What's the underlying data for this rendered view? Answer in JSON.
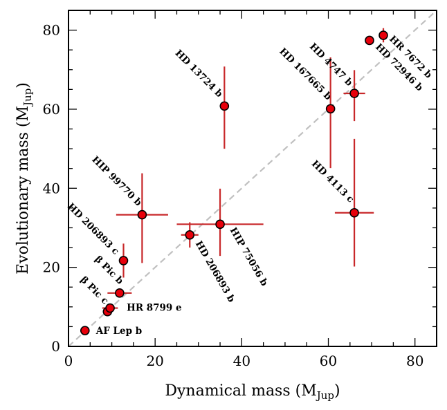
{
  "chart_data": {
    "type": "scatter",
    "title": "",
    "xlabel": "Dynamical mass (MJup)",
    "xlabel_main": "Dynamical mass (M",
    "xlabel_sub": "Jup",
    "xlabel_close": ")",
    "ylabel": "Evolutionary mass (MJup)",
    "ylabel_main": "Evolutionary mass (M",
    "ylabel_sub": "Jup",
    "ylabel_close": ")",
    "xlim": [
      0,
      85
    ],
    "ylim": [
      0,
      85
    ],
    "xticks": [
      0,
      20,
      40,
      60,
      80
    ],
    "yticks": [
      0,
      20,
      40,
      60,
      80
    ],
    "one_to_one_line": true,
    "marker_color": "#e8000b",
    "errorbar_color": "#c8282a",
    "line_color": "#c0c0c0",
    "points": [
      {
        "name": "AF Lep b",
        "x": 3.8,
        "xerr": [
          0,
          0
        ],
        "y": 4.0,
        "yerr": [
          0,
          0
        ]
      },
      {
        "name": "β Pic c",
        "x": 9.0,
        "xerr": [
          0,
          0
        ],
        "y": 8.8,
        "yerr": [
          0,
          0
        ]
      },
      {
        "name": "HR 8799 e",
        "x": 9.6,
        "xerr": [
          1.8,
          1.8
        ],
        "y": 9.7,
        "yerr": [
          0,
          0
        ]
      },
      {
        "name": "β Pic b",
        "x": 11.8,
        "xerr": [
          2.8,
          2.8
        ],
        "y": 13.5,
        "yerr": [
          0,
          0
        ]
      },
      {
        "name": "HD 206893 c",
        "x": 12.7,
        "xerr": [
          0,
          0
        ],
        "y": 21.7,
        "yerr": [
          4.3,
          4.3
        ]
      },
      {
        "name": "HIP 99770 b",
        "x": 17.0,
        "xerr": [
          6.0,
          6.0
        ],
        "y": 33.3,
        "yerr": [
          12.2,
          10.5
        ]
      },
      {
        "name": "HD 206893 b",
        "x": 28.0,
        "xerr": [
          2.0,
          2.0
        ],
        "y": 28.2,
        "yerr": [
          3.2,
          3.2
        ]
      },
      {
        "name": "HIP 75056 b",
        "x": 35.0,
        "xerr": [
          10.0,
          10.0
        ],
        "y": 30.9,
        "yerr": [
          8.0,
          9.0
        ]
      },
      {
        "name": "HD 13724 b",
        "x": 36.0,
        "xerr": [
          0,
          0
        ],
        "y": 60.8,
        "yerr": [
          10.8,
          10.0
        ]
      },
      {
        "name": "HD 4113 c",
        "x": 66.0,
        "xerr": [
          4.5,
          4.5
        ],
        "y": 33.8,
        "yerr": [
          13.6,
          18.7
        ]
      },
      {
        "name": "HD 167665 b",
        "x": 60.5,
        "xerr": [
          0,
          0
        ],
        "y": 60.1,
        "yerr": [
          15.0,
          13.0
        ]
      },
      {
        "name": "HD 4747 b",
        "x": 66.0,
        "xerr": [
          2.5,
          2.5
        ],
        "y": 64.0,
        "yerr": [
          7.0,
          5.9
        ]
      },
      {
        "name": "HD 72946 b",
        "x": 69.5,
        "xerr": [
          0,
          0
        ],
        "y": 77.4,
        "yerr": [
          0,
          0
        ]
      },
      {
        "name": "HR 7672 b",
        "x": 72.7,
        "xerr": [
          0,
          0
        ],
        "y": 78.7,
        "yerr": [
          1.8,
          1.8
        ]
      }
    ]
  }
}
